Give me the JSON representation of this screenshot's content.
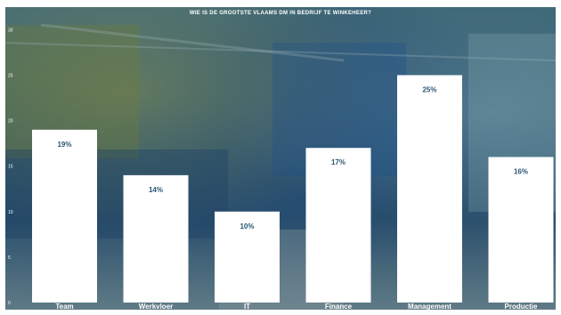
{
  "chart_data": {
    "type": "bar",
    "title": "WIE IS DE GROOTSTE VLAAMS DM IN BEDRIJF TE WINKEHEER?",
    "categories": [
      "Team",
      "Werkvloer",
      "IT",
      "Finance",
      "Management",
      "Productie"
    ],
    "values": [
      19,
      14,
      10,
      17,
      25,
      16
    ],
    "value_labels": [
      "19%",
      "14%",
      "10%",
      "17%",
      "25%",
      "16%"
    ],
    "yticks": [
      "0",
      "5",
      "10",
      "15",
      "20",
      "25",
      "30"
    ],
    "ylim": [
      0,
      27
    ],
    "xlabel": "",
    "ylabel": "",
    "bar_color": "#ffffff",
    "label_color": "#2a5571"
  }
}
